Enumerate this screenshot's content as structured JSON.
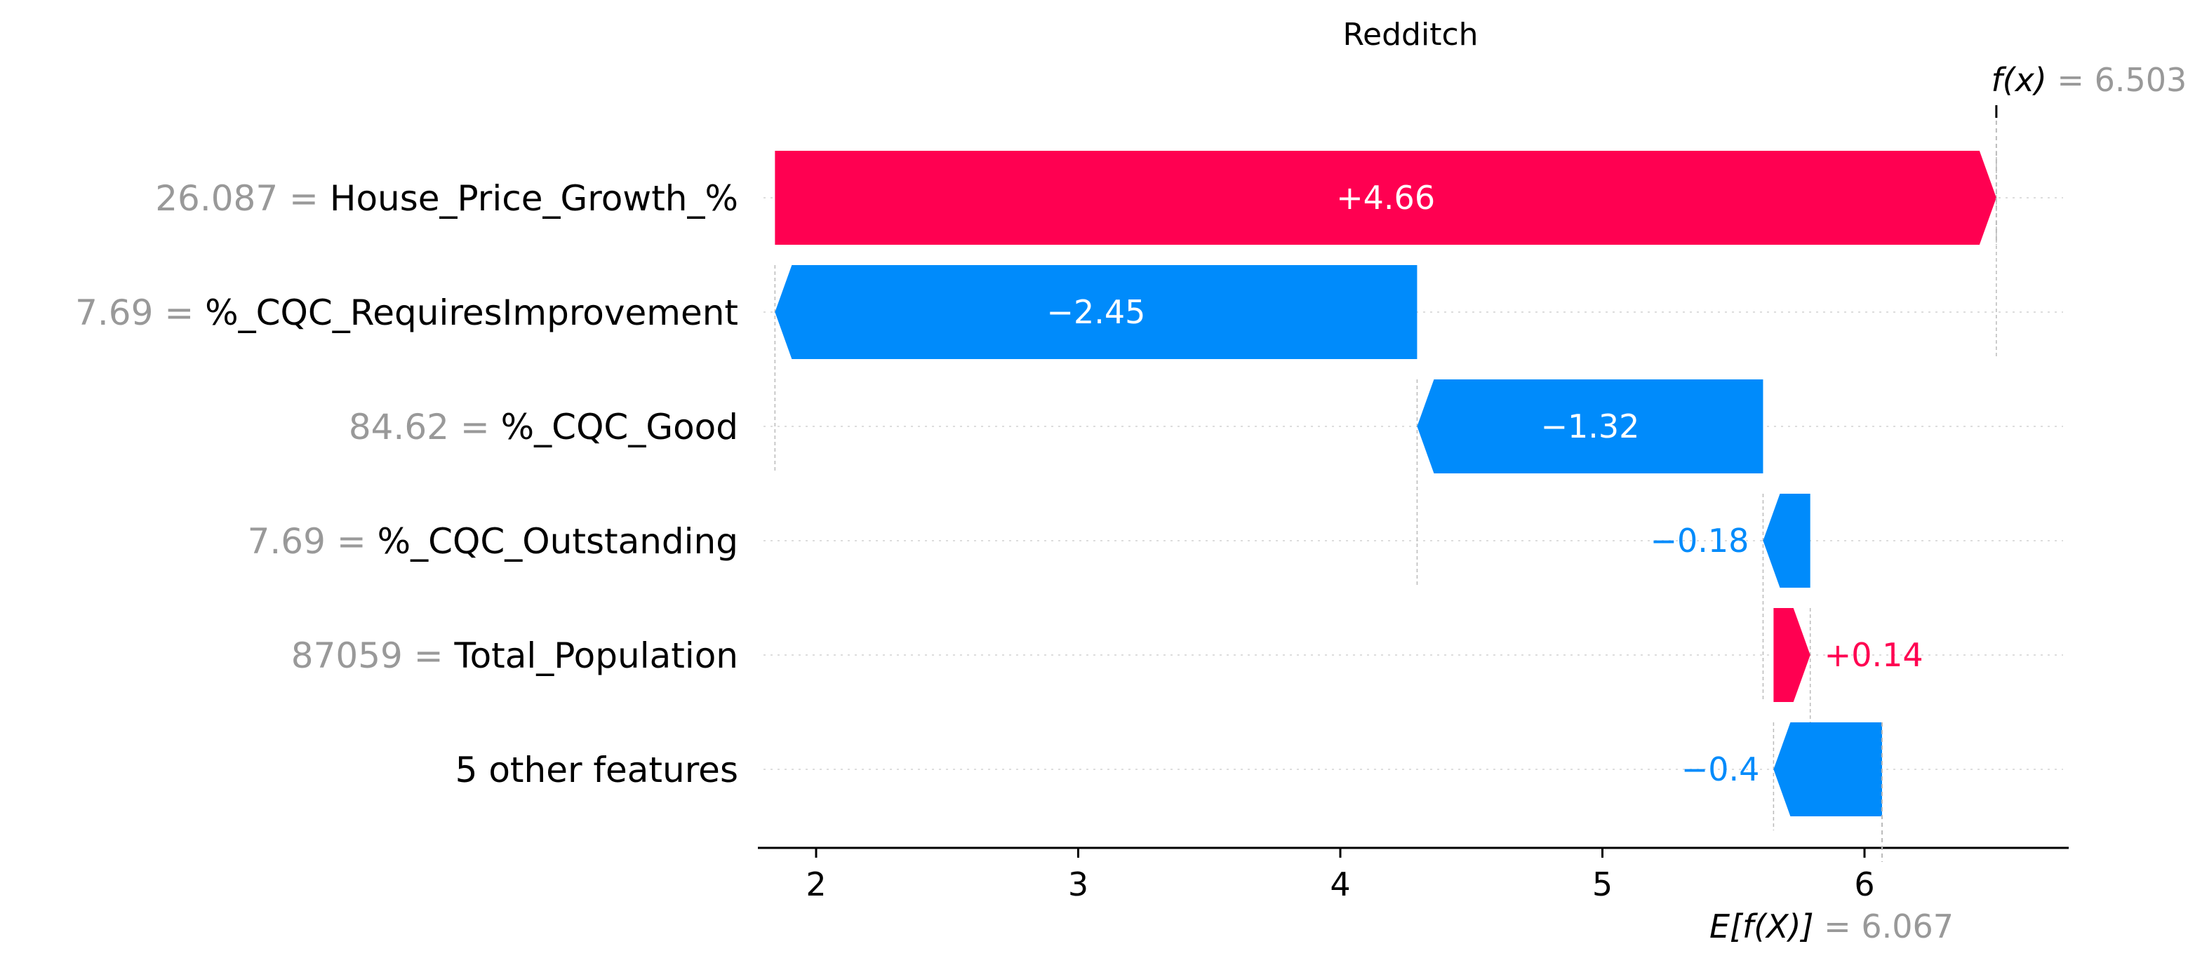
{
  "chart_data": {
    "type": "waterfall",
    "title": "Redditch",
    "base_value": 6.067,
    "output_value": 6.503,
    "fx_label": {
      "name": "f(x)",
      "eq": " = ",
      "value": "6.503"
    },
    "efx_label": {
      "name": "E[f(X)]",
      "eq": " = ",
      "value": "6.067"
    },
    "features": [
      {
        "value": "26.087",
        "name": "House_Price_Growth_%",
        "contribution": 4.66,
        "label": "+4.66",
        "start": 1.843,
        "end": 6.503
      },
      {
        "value": "7.69",
        "name": "%_CQC_RequiresImprovement",
        "contribution": -2.45,
        "label": "−2.45",
        "start": 4.293,
        "end": 1.843
      },
      {
        "value": "84.62",
        "name": "%_CQC_Good",
        "contribution": -1.32,
        "label": "−1.32",
        "start": 5.613,
        "end": 4.293
      },
      {
        "value": "7.69",
        "name": "%_CQC_Outstanding",
        "contribution": -0.18,
        "label": "−0.18",
        "start": 5.793,
        "end": 5.613
      },
      {
        "value": "87059",
        "name": "Total_Population",
        "contribution": 0.14,
        "label": "+0.14",
        "start": 5.653,
        "end": 5.793
      },
      {
        "value": "",
        "name": "5 other features",
        "contribution": -0.4,
        "label": "−0.4",
        "start": 6.067,
        "end": 5.653
      }
    ],
    "xticks": [
      2,
      3,
      4,
      5,
      6
    ],
    "xlim": [
      1.81,
      6.6
    ],
    "colors": {
      "positive": "#ff0051",
      "negative": "#008bfb",
      "muted": "#999999",
      "axis": "#000000"
    }
  }
}
